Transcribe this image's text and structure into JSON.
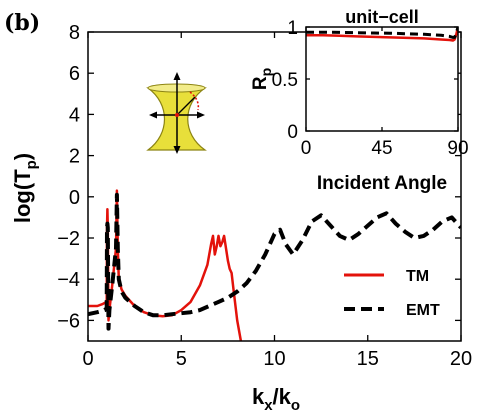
{
  "panel_label": "(b)",
  "colors": {
    "tm": "#e3120b",
    "emt": "#000000",
    "cone": "#e8df3a",
    "cone_edge": "#8c8413"
  },
  "chart_data": [
    {
      "type": "line",
      "xlabel_main": "k",
      "xlabel_sub1": "x",
      "xlabel_slash": "/k",
      "xlabel_sub2": "o",
      "ylabel_main": "log(T",
      "ylabel_sub": "p",
      "ylabel_close": ")",
      "xlim": [
        0,
        20
      ],
      "ylim": [
        -7,
        8
      ],
      "xticks": [
        "0",
        "5",
        "10",
        "15",
        "20"
      ],
      "yticks": [
        "8",
        "6",
        "4",
        "2",
        "0",
        "−2",
        "−4",
        "−6"
      ],
      "ytick_values": [
        8,
        6,
        4,
        2,
        0,
        -2,
        -4,
        -6
      ],
      "xtick_values": [
        0,
        5,
        10,
        15,
        20
      ],
      "legend": {
        "placement": "lower-right",
        "entries": [
          "TM",
          "EMT"
        ]
      },
      "series": [
        {
          "name": "TM",
          "style": "solid",
          "x": [
            0,
            0.5,
            0.8,
            1.0,
            1.02,
            1.04,
            1.06,
            1.1,
            1.15,
            1.3,
            1.5,
            1.55,
            1.6,
            1.65,
            1.8,
            2.0,
            2.5,
            3.0,
            3.5,
            4.0,
            4.5,
            5.0,
            5.5,
            6.0,
            6.4,
            6.6,
            6.7,
            6.8,
            6.9,
            7.0,
            7.1,
            7.2,
            7.3,
            7.4,
            7.5,
            7.6,
            7.7,
            7.8,
            8.0,
            8.2
          ],
          "y": [
            -5.3,
            -5.3,
            -5.2,
            -5.1,
            -1.5,
            -0.6,
            -1.5,
            -6.0,
            -5.5,
            -4.3,
            -2.5,
            0.3,
            -2.5,
            -4.0,
            -4.5,
            -4.8,
            -5.3,
            -5.6,
            -5.75,
            -5.8,
            -5.75,
            -5.5,
            -5.1,
            -4.3,
            -3.3,
            -2.3,
            -1.9,
            -2.8,
            -2.4,
            -1.9,
            -2.4,
            -2.2,
            -1.9,
            -2.5,
            -3.1,
            -3.5,
            -3.7,
            -4.5,
            -6.0,
            -7.0
          ]
        },
        {
          "name": "EMT",
          "style": "dashed",
          "x": [
            0,
            0.5,
            0.9,
            1.0,
            1.02,
            1.04,
            1.06,
            1.1,
            1.15,
            1.3,
            1.5,
            1.55,
            1.6,
            1.65,
            1.8,
            2.0,
            2.5,
            3.0,
            3.5,
            4.0,
            4.5,
            5.0,
            5.5,
            6.0,
            6.5,
            7.0,
            7.5,
            8.0,
            8.5,
            9.0,
            9.5,
            10.0,
            10.3,
            10.6,
            11.0,
            11.5,
            12.0,
            12.5,
            13.0,
            13.5,
            14.0,
            14.5,
            15.0,
            15.5,
            16.0,
            16.5,
            17.0,
            17.5,
            18.0,
            18.5,
            19.0,
            19.5,
            20.0
          ],
          "y": [
            -5.7,
            -5.6,
            -5.5,
            -5.4,
            -1.5,
            -1.3,
            -1.5,
            -6.4,
            -5.5,
            -4.3,
            -2.5,
            0.1,
            -2.5,
            -4.0,
            -4.6,
            -4.9,
            -5.3,
            -5.6,
            -5.75,
            -5.75,
            -5.7,
            -5.65,
            -5.6,
            -5.5,
            -5.3,
            -5.1,
            -4.9,
            -4.6,
            -4.2,
            -3.6,
            -2.8,
            -1.8,
            -1.6,
            -2.3,
            -2.8,
            -2.1,
            -1.2,
            -0.9,
            -1.4,
            -1.9,
            -2.1,
            -1.8,
            -1.4,
            -1.0,
            -0.8,
            -1.3,
            -1.7,
            -2.0,
            -1.9,
            -1.6,
            -1.2,
            -1.0,
            -1.5
          ]
        }
      ]
    },
    {
      "type": "line",
      "title": "unit−cell",
      "xlabel": "Incident Angle",
      "ylabel_main": "R",
      "ylabel_sub": "p",
      "xlim": [
        0,
        90
      ],
      "ylim": [
        0,
        1
      ],
      "xticks": [
        "0",
        "45",
        "90"
      ],
      "xtick_values": [
        0,
        45,
        90
      ],
      "yticks": [
        "0",
        "0.5",
        "1"
      ],
      "ytick_values": [
        0,
        0.5,
        1
      ],
      "series": [
        {
          "name": "TM",
          "style": "solid",
          "x": [
            0,
            10,
            20,
            30,
            40,
            50,
            60,
            70,
            80,
            85,
            87,
            88,
            89,
            90
          ],
          "y": [
            0.92,
            0.92,
            0.915,
            0.91,
            0.905,
            0.9,
            0.895,
            0.89,
            0.88,
            0.875,
            0.87,
            0.88,
            0.93,
            1.0
          ]
        },
        {
          "name": "EMT",
          "style": "dashed",
          "x": [
            0,
            10,
            20,
            30,
            40,
            50,
            60,
            70,
            80,
            85,
            87,
            88,
            89,
            90
          ],
          "y": [
            0.95,
            0.95,
            0.948,
            0.945,
            0.942,
            0.94,
            0.935,
            0.93,
            0.92,
            0.91,
            0.9,
            0.9,
            0.94,
            1.0
          ]
        }
      ]
    }
  ]
}
